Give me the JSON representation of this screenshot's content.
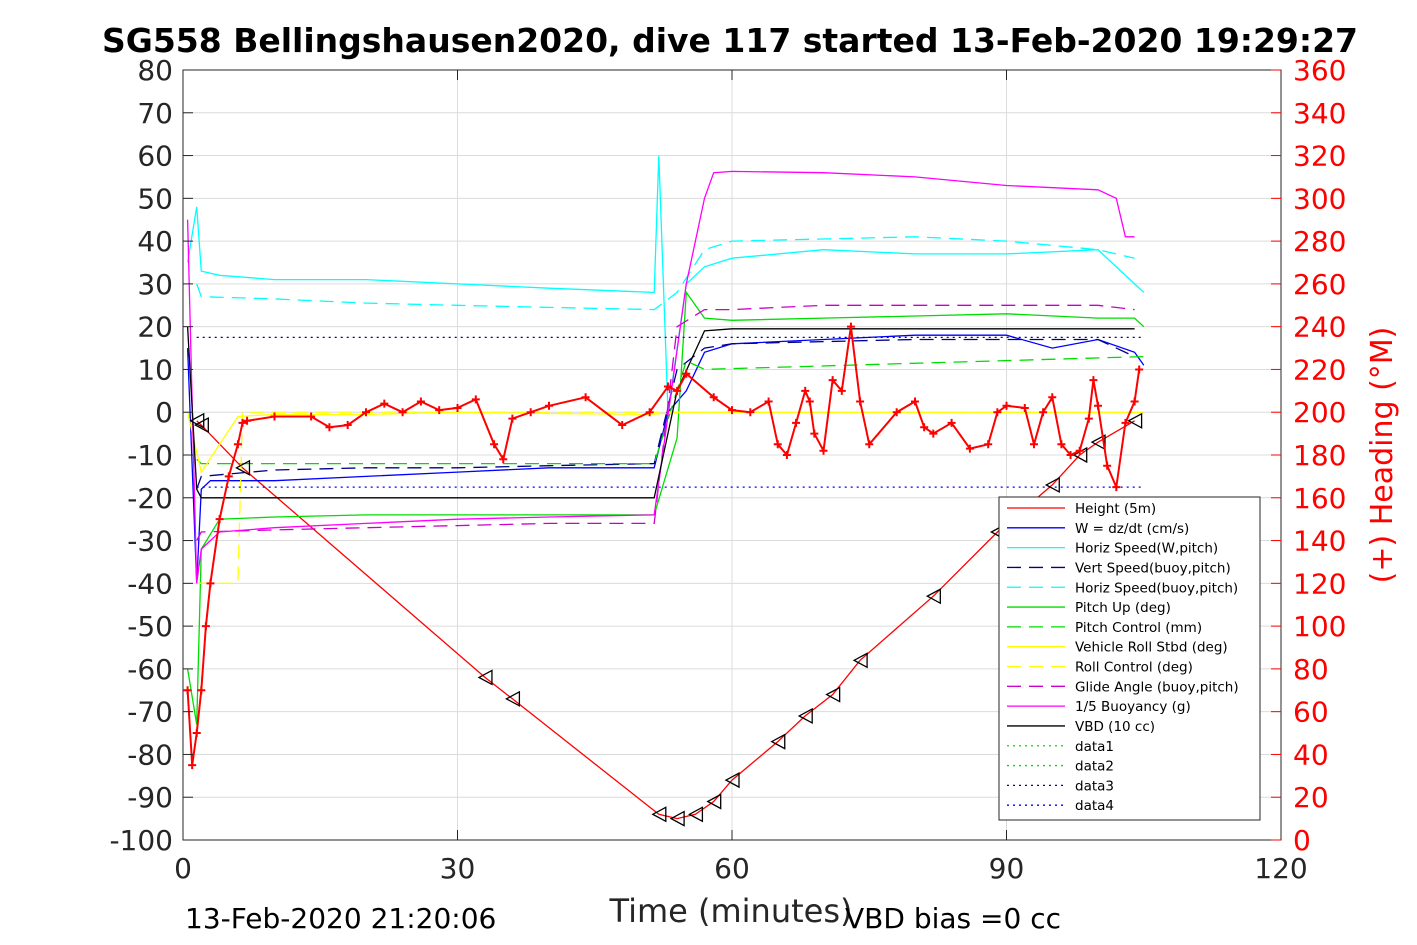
{
  "title": "SG558 Bellingshausen2020, dive 117 started 13-Feb-2020 19:29:27",
  "footer": {
    "left": "13-Feb-2020 21:20:06",
    "right": "VBD bias =0 cc"
  },
  "colors": {
    "height": "#ff0000",
    "w": "#0000ff",
    "horiz_speed": "#00ffff",
    "vert_speed_buoy": "#00008b",
    "pitch_up": "#00dd00",
    "vehicle_roll": "#ffff00",
    "glide_angle": "#cc00cc",
    "buoyancy": "#ff00ff",
    "vbd": "#000000",
    "heading": "#ff0000"
  },
  "chart_data": {
    "type": "line",
    "title": "SG558 Bellingshausen2020, dive 117 started 13-Feb-2020 19:29:27",
    "xlabel": "Time (minutes)",
    "ylabel": "",
    "y2label": "(+) Heading (°M)",
    "xlim": [
      0,
      120
    ],
    "ylim": [
      -100,
      80
    ],
    "y2lim": [
      0,
      360
    ],
    "xticks": [
      "0",
      "30",
      "60",
      "90",
      "120"
    ],
    "yticks": [
      "80",
      "70",
      "60",
      "50",
      "40",
      "30",
      "20",
      "10",
      "0",
      "-10",
      "-20",
      "-30",
      "-40",
      "-50",
      "-60",
      "-70",
      "-80",
      "-90",
      "-100"
    ],
    "y2ticks": [
      "360",
      "340",
      "320",
      "300",
      "280",
      "260",
      "240",
      "220",
      "200",
      "180",
      "160",
      "140",
      "120",
      "100",
      "80",
      "60",
      "40",
      "20",
      "0"
    ],
    "grid": true,
    "legend_position": "bottom-right",
    "legend": [
      "Height (5m)",
      "W = dz/dt (cm/s)",
      "Horiz Speed(W,pitch)",
      "Vert Speed(buoy,pitch)",
      "Horiz Speed(buoy,pitch)",
      "Pitch Up (deg)",
      "Pitch Control (mm)",
      "Vehicle Roll Stbd (deg)",
      "Roll Control (deg)",
      "Glide Angle (buoy,pitch)",
      "1/5 Buoyancy (g)",
      "VBD (10 cc)",
      "data1",
      "data2",
      "data3",
      "data4"
    ],
    "series": [
      {
        "name": "Height (5m)",
        "x": [
          1.5,
          2,
          6.5,
          33,
          36,
          52,
          54,
          56,
          58,
          60,
          65,
          68,
          71,
          74,
          82,
          89,
          95,
          98,
          100,
          104
        ],
        "y": [
          -2,
          -3,
          -13,
          -62,
          -67,
          -94,
          -95,
          -94,
          -91,
          -86,
          -77,
          -71,
          -66,
          -58,
          -43,
          -28,
          -17,
          -10,
          -7,
          -2
        ]
      },
      {
        "name": "W = dz/dt (cm/s)",
        "x": [
          0.5,
          1.5,
          2,
          3,
          10,
          20,
          30,
          40,
          51.5,
          53,
          55,
          57,
          60,
          70,
          80,
          90,
          95,
          100,
          104,
          105
        ],
        "y": [
          15,
          -40,
          -18,
          -16,
          -16,
          -15,
          -14,
          -13,
          -13,
          0,
          5,
          14,
          16,
          17,
          18,
          18,
          15,
          17,
          14,
          11
        ]
      },
      {
        "name": "Horiz Speed(W,pitch)",
        "x": [
          0.5,
          1.5,
          2,
          4,
          10,
          20,
          30,
          40,
          51.5,
          52,
          53,
          55,
          57,
          60,
          70,
          80,
          90,
          100,
          104,
          105
        ],
        "y": [
          35,
          48,
          33,
          32,
          31,
          31,
          30,
          29,
          28,
          60,
          0,
          30,
          34,
          36,
          38,
          37,
          37,
          38,
          30,
          28
        ]
      },
      {
        "name": "Vert Speed(buoy,pitch)",
        "x": [
          1.5,
          2,
          10,
          20,
          30,
          40,
          51.5,
          54,
          57,
          60,
          70,
          80,
          90,
          100,
          104
        ],
        "y": [
          -18,
          -15,
          -13.5,
          -13,
          -13,
          -12.5,
          -12,
          10,
          15,
          16,
          16.5,
          17,
          17,
          17,
          13
        ]
      },
      {
        "name": "Horiz Speed(buoy,pitch)",
        "x": [
          1.5,
          2,
          10,
          20,
          30,
          40,
          51.5,
          54,
          57,
          60,
          70,
          80,
          90,
          100,
          104
        ],
        "y": [
          30,
          27,
          26.5,
          25.5,
          25,
          24.5,
          24,
          28,
          38,
          40,
          40.5,
          41,
          40,
          38,
          36
        ]
      },
      {
        "name": "Pitch Up (deg)",
        "x": [
          0.5,
          1.5,
          2,
          4,
          10,
          20,
          30,
          40,
          51.5,
          54,
          55,
          57,
          60,
          70,
          80,
          90,
          100,
          104,
          105
        ],
        "y": [
          -60,
          -73,
          -32,
          -25,
          -24.5,
          -24,
          -24,
          -24,
          -24,
          -6,
          28,
          22,
          21.5,
          22,
          22.5,
          23,
          22,
          22,
          20
        ]
      },
      {
        "name": "Pitch Control (mm)",
        "x": [
          1.5,
          2,
          51.5,
          55,
          57,
          105
        ],
        "y": [
          -11,
          -12,
          -12,
          12,
          10,
          13
        ]
      },
      {
        "name": "Vehicle Roll Stbd (deg)",
        "x": [
          0.5,
          2,
          6,
          10,
          20,
          30,
          40,
          51,
          55,
          60,
          70,
          80,
          90,
          100,
          105
        ],
        "y": [
          0,
          -14,
          -1,
          -0.5,
          -0.5,
          0,
          -0.3,
          -0.5,
          0,
          0,
          0,
          0,
          0,
          0,
          0
        ]
      },
      {
        "name": "Roll Control (deg)",
        "x": [
          1.5,
          2,
          6,
          6.5,
          105
        ],
        "y": [
          -40,
          -40,
          -40,
          0,
          0
        ]
      },
      {
        "name": "Glide Angle (buoy,pitch)",
        "x": [
          1.5,
          2,
          10,
          20,
          30,
          40,
          51.5,
          54,
          57,
          60,
          70,
          80,
          90,
          100,
          104
        ],
        "y": [
          -30,
          -28,
          -27.5,
          -27,
          -26.5,
          -26,
          -26,
          20,
          24,
          24,
          25,
          25,
          25,
          25,
          24
        ]
      },
      {
        "name": "1/5 Buoyancy (g)",
        "x": [
          0.5,
          1.5,
          2,
          4,
          10,
          20,
          30,
          40,
          51.5,
          55,
          57,
          58,
          60,
          70,
          80,
          90,
          100,
          102,
          103,
          104
        ],
        "y": [
          45,
          -40,
          -32,
          -28,
          -27,
          -26,
          -25,
          -24.5,
          -24,
          30,
          50,
          56,
          56.3,
          56,
          55,
          53,
          52,
          50,
          41,
          41
        ]
      },
      {
        "name": "VBD (10 cc)",
        "x": [
          0.5,
          1.5,
          2,
          51.5,
          54,
          57,
          60,
          104
        ],
        "y": [
          20,
          -18,
          -20,
          -20,
          5,
          19,
          19.5,
          19.5
        ]
      },
      {
        "name": "data1",
        "x": [],
        "y": []
      },
      {
        "name": "data2",
        "x": [],
        "y": []
      },
      {
        "name": "data3",
        "x": [
          1.5,
          105
        ],
        "y": [
          17.5,
          17.5
        ]
      },
      {
        "name": "data4",
        "x": [
          1.5,
          105
        ],
        "y": [
          -17.5,
          -17.5
        ]
      }
    ],
    "heading_series": {
      "name": "(+) Heading (°M)",
      "x": [
        0.5,
        1,
        1.5,
        2,
        2.5,
        3,
        4,
        5,
        6,
        6.5,
        7,
        10,
        14,
        16,
        18,
        20,
        22,
        24,
        26,
        28,
        30,
        32,
        34,
        35,
        36,
        38,
        40,
        44,
        48,
        51,
        53,
        54,
        55,
        58,
        60,
        62,
        64,
        65,
        66,
        67,
        68,
        68.5,
        69,
        70,
        71,
        72,
        73,
        74,
        75,
        78,
        80,
        81,
        82,
        84,
        86,
        88,
        89,
        90,
        92,
        93,
        94,
        95,
        96,
        97,
        98,
        99,
        99.5,
        100,
        101,
        102,
        103,
        104,
        104.5
      ],
      "y": [
        70,
        35,
        50,
        70,
        100,
        120,
        150,
        170,
        185,
        195,
        196,
        198,
        198,
        193,
        194,
        200,
        204,
        200,
        205,
        201,
        202,
        206,
        185,
        178,
        197,
        200,
        203,
        207,
        194,
        200,
        212,
        210,
        218,
        207,
        201,
        200,
        205,
        185,
        180,
        195,
        210,
        205,
        190,
        182,
        215,
        210,
        240,
        205,
        185,
        200,
        205,
        193,
        190,
        195,
        183,
        185,
        200,
        203,
        202,
        185,
        200,
        207,
        185,
        180,
        182,
        197,
        215,
        203,
        175,
        165,
        195,
        205,
        220
      ]
    }
  }
}
